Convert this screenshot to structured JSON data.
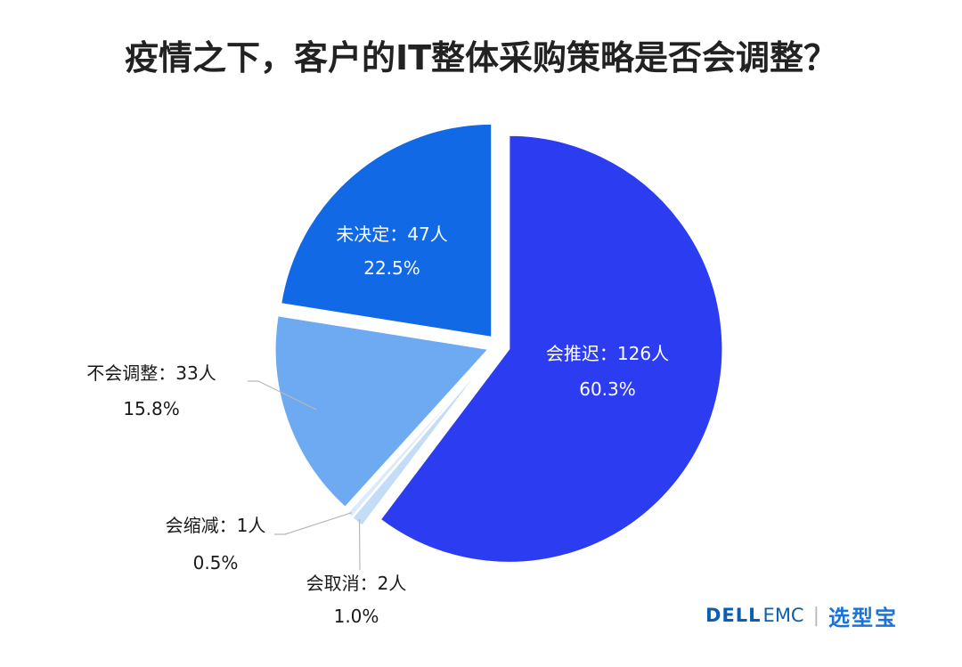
{
  "title": "疫情之下，客户的IT整体采购策略是否会调整？",
  "brand": {
    "dell": "DELL",
    "emc": "EMC",
    "separator": "|",
    "xuanxingbao": "选型宝"
  },
  "chart_data": {
    "type": "pie",
    "title": "疫情之下，客户的IT整体采购策略是否会调整？",
    "slices": [
      {
        "label": "会推迟：126人",
        "count": 126,
        "percent_label": "60.3%",
        "percent": 60.3,
        "color": "#2c3cf0",
        "label_position": "inside"
      },
      {
        "label": "会取消：2人",
        "count": 2,
        "percent_label": "1.0%",
        "percent": 1.0,
        "color": "#c3dcf7",
        "label_position": "outside"
      },
      {
        "label": "会缩减：1人",
        "count": 1,
        "percent_label": "0.5%",
        "percent": 0.5,
        "color": "#dcebfb",
        "label_position": "outside"
      },
      {
        "label": "不会调整：33人",
        "count": 33,
        "percent_label": "15.8%",
        "percent": 15.8,
        "color": "#6eaaf2",
        "label_position": "outside"
      },
      {
        "label": "未决定：47人",
        "count": 47,
        "percent_label": "22.5%",
        "percent": 22.5,
        "color": "#1169e6",
        "label_position": "inside"
      }
    ]
  }
}
